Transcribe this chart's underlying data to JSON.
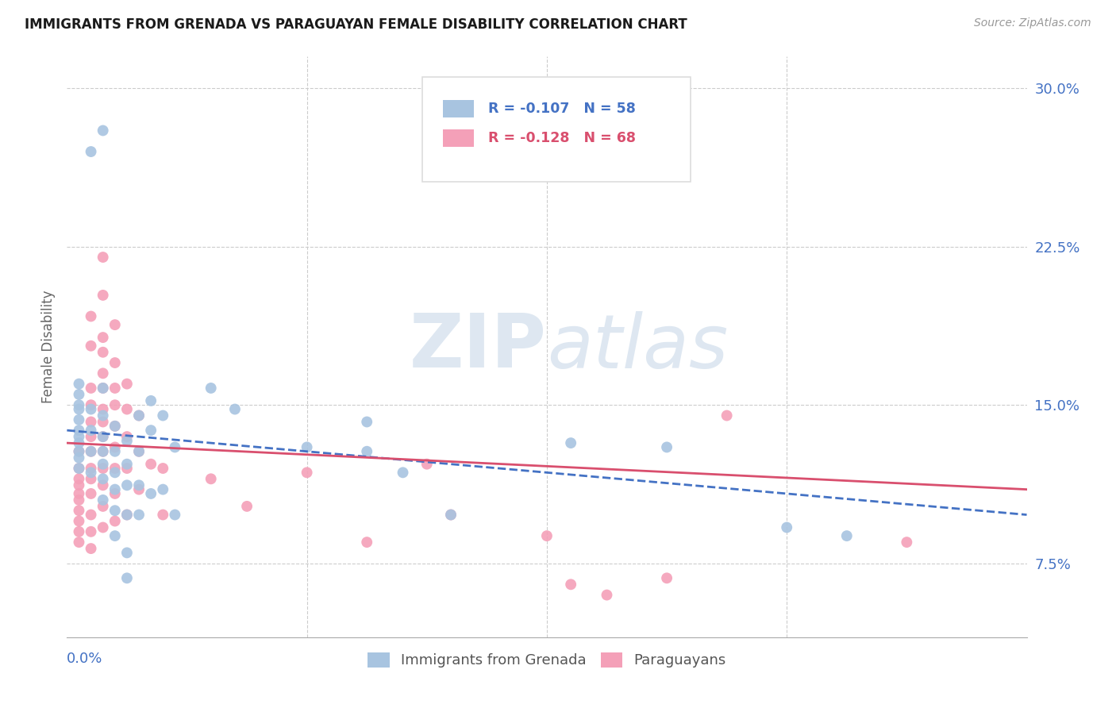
{
  "title": "IMMIGRANTS FROM GRENADA VS PARAGUAYAN FEMALE DISABILITY CORRELATION CHART",
  "source": "Source: ZipAtlas.com",
  "ylabel": "Female Disability",
  "right_ytick_vals": [
    0.075,
    0.15,
    0.225,
    0.3
  ],
  "right_ytick_labels": [
    "7.5%",
    "15.0%",
    "22.5%",
    "30.0%"
  ],
  "legend_blue_r": "-0.107",
  "legend_blue_n": "58",
  "legend_pink_r": "-0.128",
  "legend_pink_n": "68",
  "xlim": [
    0.0,
    0.08
  ],
  "ylim": [
    0.04,
    0.315
  ],
  "blue_scatter": [
    [
      0.001,
      0.135
    ],
    [
      0.002,
      0.27
    ],
    [
      0.003,
      0.28
    ],
    [
      0.001,
      0.16
    ],
    [
      0.001,
      0.155
    ],
    [
      0.001,
      0.15
    ],
    [
      0.001,
      0.148
    ],
    [
      0.001,
      0.143
    ],
    [
      0.001,
      0.138
    ],
    [
      0.001,
      0.132
    ],
    [
      0.001,
      0.128
    ],
    [
      0.001,
      0.125
    ],
    [
      0.001,
      0.12
    ],
    [
      0.002,
      0.148
    ],
    [
      0.002,
      0.138
    ],
    [
      0.002,
      0.128
    ],
    [
      0.002,
      0.118
    ],
    [
      0.003,
      0.158
    ],
    [
      0.003,
      0.145
    ],
    [
      0.003,
      0.135
    ],
    [
      0.003,
      0.128
    ],
    [
      0.003,
      0.122
    ],
    [
      0.003,
      0.115
    ],
    [
      0.003,
      0.105
    ],
    [
      0.004,
      0.14
    ],
    [
      0.004,
      0.128
    ],
    [
      0.004,
      0.118
    ],
    [
      0.004,
      0.11
    ],
    [
      0.004,
      0.1
    ],
    [
      0.004,
      0.088
    ],
    [
      0.005,
      0.133
    ],
    [
      0.005,
      0.122
    ],
    [
      0.005,
      0.112
    ],
    [
      0.005,
      0.098
    ],
    [
      0.005,
      0.08
    ],
    [
      0.005,
      0.068
    ],
    [
      0.006,
      0.145
    ],
    [
      0.006,
      0.128
    ],
    [
      0.006,
      0.112
    ],
    [
      0.006,
      0.098
    ],
    [
      0.007,
      0.152
    ],
    [
      0.007,
      0.138
    ],
    [
      0.007,
      0.108
    ],
    [
      0.008,
      0.145
    ],
    [
      0.008,
      0.11
    ],
    [
      0.009,
      0.13
    ],
    [
      0.009,
      0.098
    ],
    [
      0.012,
      0.158
    ],
    [
      0.014,
      0.148
    ],
    [
      0.02,
      0.13
    ],
    [
      0.025,
      0.142
    ],
    [
      0.025,
      0.128
    ],
    [
      0.028,
      0.118
    ],
    [
      0.032,
      0.098
    ],
    [
      0.042,
      0.132
    ],
    [
      0.05,
      0.13
    ],
    [
      0.06,
      0.092
    ],
    [
      0.065,
      0.088
    ]
  ],
  "pink_scatter": [
    [
      0.001,
      0.128
    ],
    [
      0.001,
      0.12
    ],
    [
      0.001,
      0.115
    ],
    [
      0.001,
      0.112
    ],
    [
      0.001,
      0.108
    ],
    [
      0.001,
      0.105
    ],
    [
      0.001,
      0.1
    ],
    [
      0.001,
      0.095
    ],
    [
      0.001,
      0.09
    ],
    [
      0.001,
      0.085
    ],
    [
      0.002,
      0.192
    ],
    [
      0.002,
      0.178
    ],
    [
      0.002,
      0.158
    ],
    [
      0.002,
      0.15
    ],
    [
      0.002,
      0.142
    ],
    [
      0.002,
      0.135
    ],
    [
      0.002,
      0.128
    ],
    [
      0.002,
      0.12
    ],
    [
      0.002,
      0.115
    ],
    [
      0.002,
      0.108
    ],
    [
      0.002,
      0.098
    ],
    [
      0.002,
      0.09
    ],
    [
      0.002,
      0.082
    ],
    [
      0.003,
      0.22
    ],
    [
      0.003,
      0.202
    ],
    [
      0.003,
      0.182
    ],
    [
      0.003,
      0.175
    ],
    [
      0.003,
      0.165
    ],
    [
      0.003,
      0.158
    ],
    [
      0.003,
      0.148
    ],
    [
      0.003,
      0.142
    ],
    [
      0.003,
      0.135
    ],
    [
      0.003,
      0.128
    ],
    [
      0.003,
      0.12
    ],
    [
      0.003,
      0.112
    ],
    [
      0.003,
      0.102
    ],
    [
      0.003,
      0.092
    ],
    [
      0.004,
      0.188
    ],
    [
      0.004,
      0.17
    ],
    [
      0.004,
      0.158
    ],
    [
      0.004,
      0.15
    ],
    [
      0.004,
      0.14
    ],
    [
      0.004,
      0.13
    ],
    [
      0.004,
      0.12
    ],
    [
      0.004,
      0.108
    ],
    [
      0.004,
      0.095
    ],
    [
      0.005,
      0.16
    ],
    [
      0.005,
      0.148
    ],
    [
      0.005,
      0.135
    ],
    [
      0.005,
      0.12
    ],
    [
      0.005,
      0.098
    ],
    [
      0.006,
      0.145
    ],
    [
      0.006,
      0.128
    ],
    [
      0.006,
      0.11
    ],
    [
      0.007,
      0.122
    ],
    [
      0.008,
      0.12
    ],
    [
      0.008,
      0.098
    ],
    [
      0.012,
      0.115
    ],
    [
      0.015,
      0.102
    ],
    [
      0.02,
      0.118
    ],
    [
      0.025,
      0.085
    ],
    [
      0.03,
      0.122
    ],
    [
      0.032,
      0.098
    ],
    [
      0.04,
      0.088
    ],
    [
      0.042,
      0.065
    ],
    [
      0.045,
      0.06
    ],
    [
      0.05,
      0.068
    ],
    [
      0.055,
      0.145
    ],
    [
      0.07,
      0.085
    ]
  ],
  "blue_line_x": [
    0.0,
    0.08
  ],
  "blue_line_y": [
    0.138,
    0.098
  ],
  "pink_line_x": [
    0.0,
    0.08
  ],
  "pink_line_y": [
    0.132,
    0.11
  ],
  "watermark_zip": "ZIP",
  "watermark_atlas": "atlas",
  "background_color": "#ffffff",
  "blue_color": "#a8c4e0",
  "pink_color": "#f4a0b8",
  "blue_line_color": "#4472c4",
  "pink_line_color": "#d94f6e",
  "title_color": "#1a1a1a",
  "axis_label_color": "#4472c4",
  "grid_color": "#cccccc",
  "legend_box_color": "#dddddd"
}
